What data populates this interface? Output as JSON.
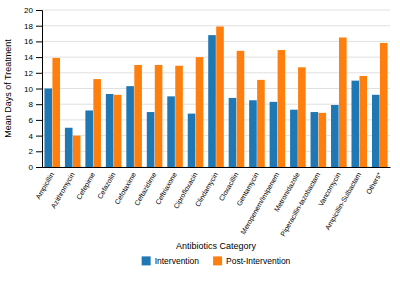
{
  "chart_data": {
    "type": "bar",
    "xlabel": "Antibiotics Category",
    "ylabel": "Mean Days of Treatment",
    "categories": [
      "Ampicillin",
      "Azithromycin",
      "Cefepime",
      "Cefazolin",
      "Cefotaxime",
      "Ceftazidime",
      "Ceftriaxone",
      "Ciprofloxacin",
      "Clindamycin",
      "Cloxacillin",
      "Gentamycin",
      "Meropenem/Imipenem",
      "Metronidazole",
      "Piperacillin-tazobactam",
      "Vancomycin",
      "Ampicillin-Sulbactam",
      "Others*"
    ],
    "series": [
      {
        "name": "Intervention",
        "values": [
          10.0,
          5.0,
          7.2,
          9.3,
          10.3,
          7.0,
          9.0,
          6.8,
          16.8,
          8.8,
          8.5,
          8.3,
          7.3,
          7.0,
          7.9,
          11.0,
          9.2
        ]
      },
      {
        "name": "Post-Intervention",
        "values": [
          13.9,
          4.0,
          11.2,
          9.2,
          13.0,
          13.0,
          12.9,
          14.0,
          17.9,
          14.8,
          11.1,
          14.9,
          12.7,
          6.9,
          16.5,
          11.6,
          15.8
        ]
      }
    ],
    "ylim": [
      0,
      20
    ],
    "yticks": [
      0,
      2,
      4,
      6,
      8,
      10,
      12,
      14,
      16,
      18,
      20
    ],
    "grid": true,
    "legend": "bottom"
  }
}
